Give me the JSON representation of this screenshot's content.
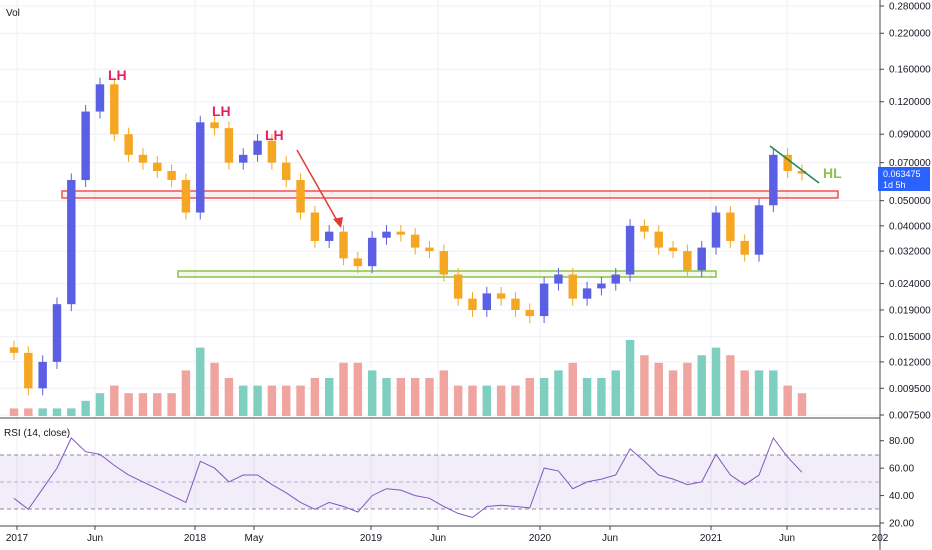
{
  "labels": {
    "vol": "Vol",
    "rsi": "RSI (14, close)"
  },
  "price_badge": {
    "price": "0.063475",
    "countdown": "1d 5h"
  },
  "annotations": {
    "lh1": "LH",
    "lh2": "LH",
    "lh3": "LH",
    "hl": "HL"
  },
  "colors": {
    "up": "#5b5fe3",
    "down": "#f5a623",
    "vol_up": "#7fcfc1",
    "vol_down": "#f0a4a0",
    "rsi_line": "#7e57c2",
    "resistance": "#ef5350",
    "support": "#8bc34a",
    "trend_arrow": "#e53935",
    "wedge": "#1b8a4a",
    "lh_text": "#e91e63",
    "hl_text": "#8bc34a"
  },
  "chart_data": [
    {
      "type": "candlestick",
      "scale": "log",
      "x_ticks": [
        "2017",
        "Jun",
        "2018",
        "May",
        "2019",
        "Jun",
        "2020",
        "Jun",
        "2021",
        "Jun",
        "202"
      ],
      "y_ticks": [
        "0.280000",
        "0.220000",
        "0.160000",
        "0.120000",
        "0.090000",
        "0.070000",
        "0.050000",
        "0.040000",
        "0.032000",
        "0.024000",
        "0.019000",
        "0.015000",
        "0.012000",
        "0.009500",
        "0.007500"
      ],
      "last_price": 0.063475,
      "series": [
        {
          "name": "close",
          "x": [
            "2016-12",
            "2017-01",
            "2017-02",
            "2017-03",
            "2017-04",
            "2017-05",
            "2017-06",
            "2017-07",
            "2017-08",
            "2017-09",
            "2017-10",
            "2017-11",
            "2017-12",
            "2018-01",
            "2018-02",
            "2018-03",
            "2018-04",
            "2018-05",
            "2018-06",
            "2018-07",
            "2018-08",
            "2018-09",
            "2018-10",
            "2018-11",
            "2018-12",
            "2019-01",
            "2019-02",
            "2019-03",
            "2019-04",
            "2019-05",
            "2019-06",
            "2019-07",
            "2019-08",
            "2019-09",
            "2019-10",
            "2019-11",
            "2019-12",
            "2020-01",
            "2020-02",
            "2020-03",
            "2020-04",
            "2020-05",
            "2020-06",
            "2020-07",
            "2020-08",
            "2020-09",
            "2020-10",
            "2020-11",
            "2020-12",
            "2021-01",
            "2021-02",
            "2021-03",
            "2021-04",
            "2021-05",
            "2021-06",
            "2021-07"
          ],
          "values": [
            0.013,
            0.0095,
            0.012,
            0.02,
            0.06,
            0.11,
            0.14,
            0.09,
            0.075,
            0.07,
            0.065,
            0.06,
            0.045,
            0.1,
            0.095,
            0.07,
            0.075,
            0.085,
            0.07,
            0.06,
            0.045,
            0.035,
            0.038,
            0.03,
            0.028,
            0.036,
            0.038,
            0.037,
            0.033,
            0.032,
            0.026,
            0.021,
            0.019,
            0.022,
            0.021,
            0.019,
            0.018,
            0.024,
            0.026,
            0.021,
            0.023,
            0.024,
            0.026,
            0.04,
            0.038,
            0.033,
            0.032,
            0.027,
            0.033,
            0.045,
            0.035,
            0.031,
            0.048,
            0.075,
            0.065,
            0.063475
          ]
        }
      ],
      "annotations": [
        "LH",
        "LH",
        "LH",
        "HL"
      ]
    },
    {
      "type": "bar",
      "title": "Vol",
      "series": [
        {
          "name": "volume",
          "values": [
            1,
            1,
            1,
            1,
            1,
            2,
            3,
            4,
            3,
            3,
            3,
            3,
            6,
            9,
            7,
            5,
            4,
            4,
            4,
            4,
            4,
            5,
            5,
            7,
            7,
            6,
            5,
            5,
            5,
            5,
            6,
            4,
            4,
            4,
            4,
            4,
            5,
            5,
            6,
            7,
            5,
            5,
            6,
            10,
            8,
            7,
            6,
            7,
            8,
            9,
            8,
            6,
            6,
            6,
            4,
            3
          ]
        }
      ]
    },
    {
      "type": "line",
      "title": "RSI (14, close)",
      "y_ticks": [
        "80.00",
        "60.00",
        "40.00",
        "20.00"
      ],
      "ylim": [
        20,
        90
      ],
      "series": [
        {
          "name": "RSI",
          "x": [
            "2016-12",
            "2017-01",
            "2017-02",
            "2017-03",
            "2017-04",
            "2017-05",
            "2017-06",
            "2017-07",
            "2017-08",
            "2017-09",
            "2017-10",
            "2017-11",
            "2017-12",
            "2018-01",
            "2018-02",
            "2018-03",
            "2018-04",
            "2018-05",
            "2018-06",
            "2018-07",
            "2018-08",
            "2018-09",
            "2018-10",
            "2018-11",
            "2018-12",
            "2019-01",
            "2019-02",
            "2019-03",
            "2019-04",
            "2019-05",
            "2019-06",
            "2019-07",
            "2019-08",
            "2019-09",
            "2019-10",
            "2019-11",
            "2019-12",
            "2020-01",
            "2020-02",
            "2020-03",
            "2020-04",
            "2020-05",
            "2020-06",
            "2020-07",
            "2020-08",
            "2020-09",
            "2020-10",
            "2020-11",
            "2020-12",
            "2021-01",
            "2021-02",
            "2021-03",
            "2021-04",
            "2021-05",
            "2021-06",
            "2021-07"
          ],
          "values": [
            38,
            30,
            45,
            60,
            82,
            72,
            70,
            62,
            55,
            50,
            45,
            40,
            35,
            65,
            60,
            50,
            55,
            55,
            48,
            42,
            35,
            30,
            35,
            32,
            28,
            40,
            45,
            44,
            40,
            38,
            32,
            27,
            24,
            32,
            33,
            32,
            31,
            60,
            58,
            45,
            50,
            52,
            55,
            74,
            65,
            55,
            52,
            48,
            50,
            70,
            55,
            48,
            55,
            82,
            68,
            57
          ]
        }
      ]
    }
  ]
}
